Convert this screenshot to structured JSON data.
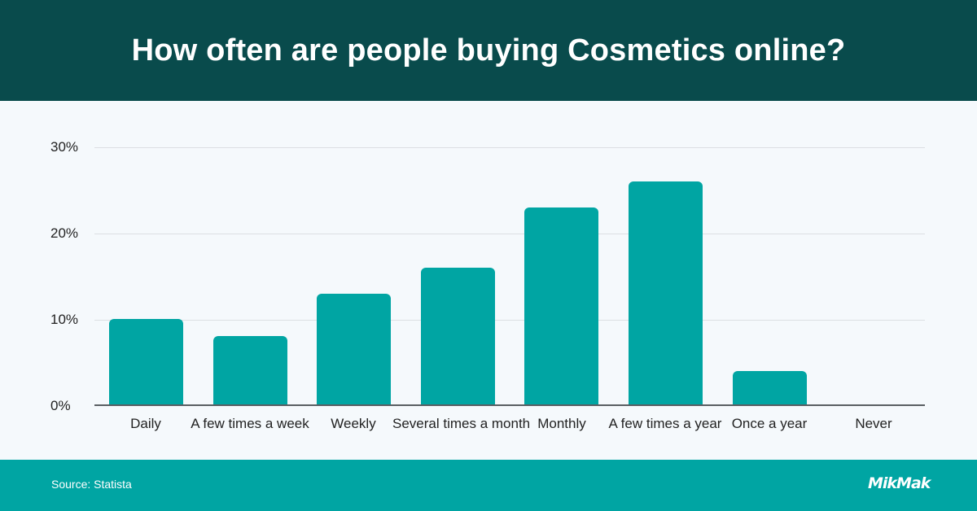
{
  "header": {
    "title": "How often are people buying Cosmetics online?"
  },
  "colors": {
    "header_bg": "#094b4c",
    "bar": "#00a5a3",
    "footer_bg": "#00a5a3",
    "plot_bg": "#f5f9fc"
  },
  "y_axis": {
    "ticks": [
      "0%",
      "10%",
      "20%",
      "30%"
    ]
  },
  "x_axis": {
    "labels": [
      "Daily",
      "A few times a week",
      "Weekly",
      "Several times a month",
      "Monthly",
      "A few times a year",
      "Once a year",
      "Never"
    ]
  },
  "footer": {
    "source": "Source: Statista",
    "logo": "MikMak"
  },
  "chart_data": {
    "type": "bar",
    "title": "How often are people buying Cosmetics online?",
    "categories": [
      "Daily",
      "A few times a week",
      "Weekly",
      "Several times a month",
      "Monthly",
      "A few times a year",
      "Once a year",
      "Never"
    ],
    "values": [
      10,
      8,
      13,
      16,
      23,
      26,
      4,
      0
    ],
    "xlabel": "",
    "ylabel": "",
    "ylim": [
      0,
      30
    ],
    "yticks": [
      0,
      10,
      20,
      30
    ],
    "ytick_format": "percent",
    "grid": true,
    "legend": null,
    "source": "Statista"
  }
}
